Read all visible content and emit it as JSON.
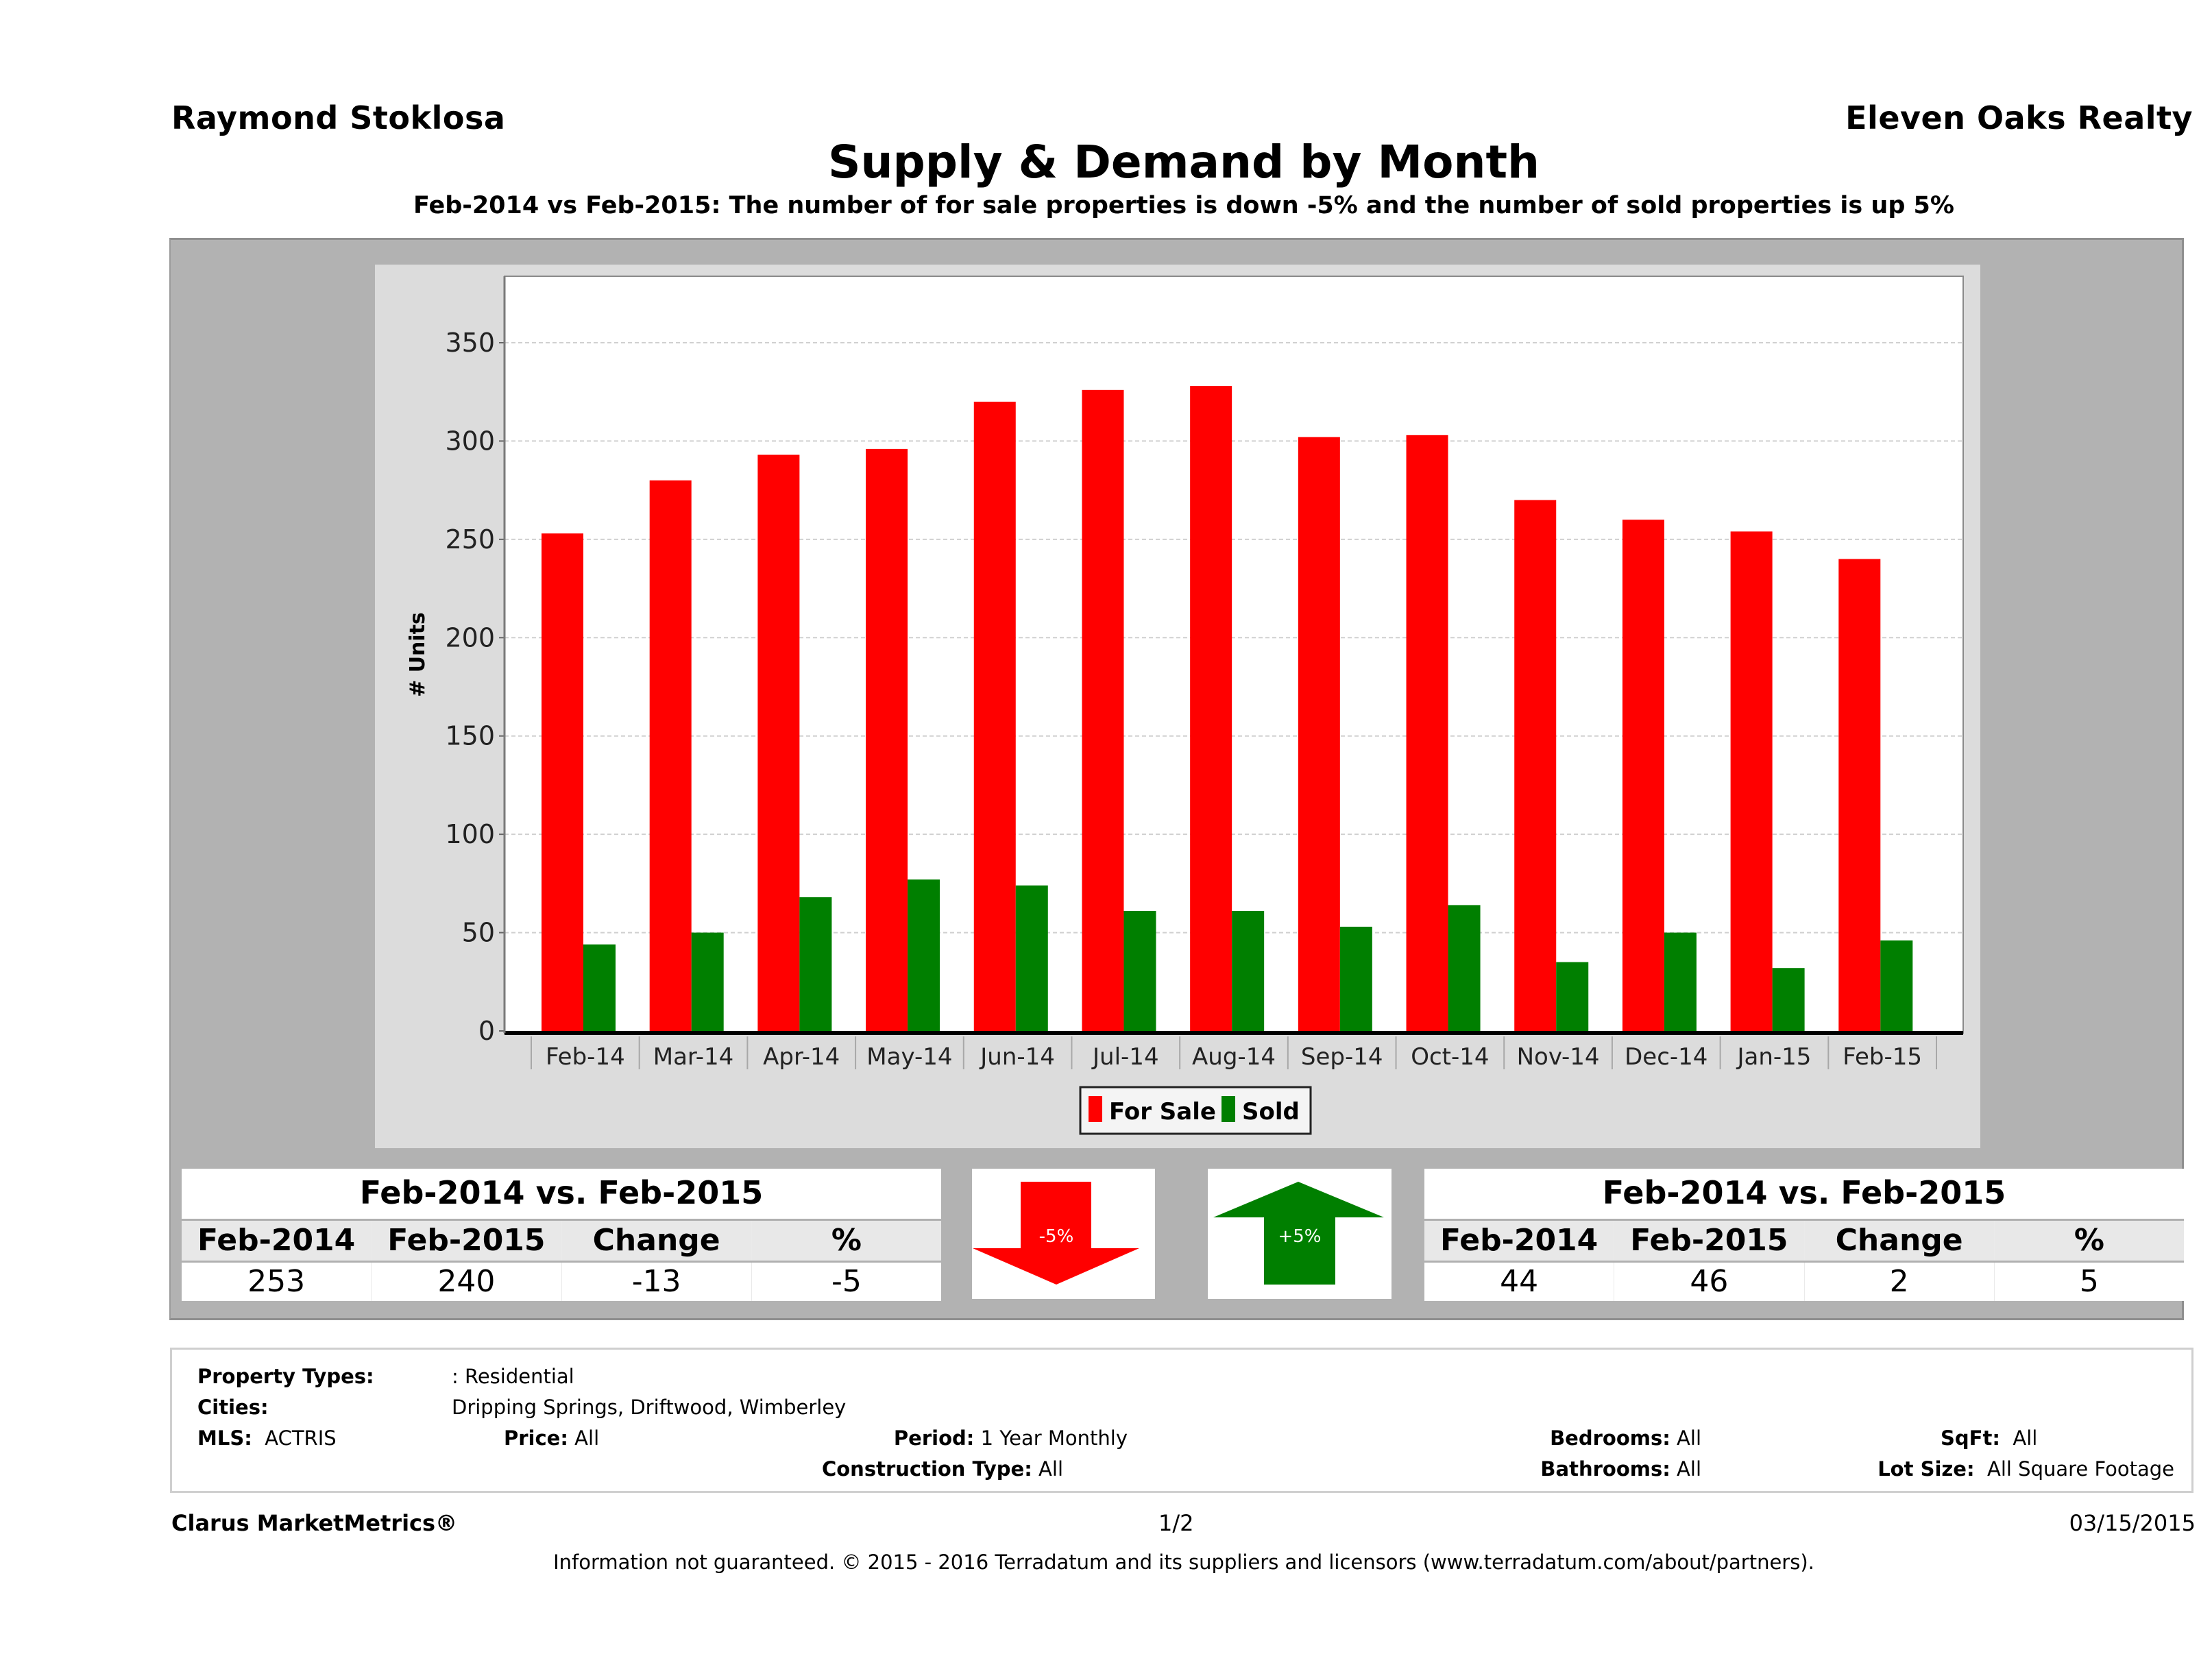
{
  "header": {
    "agent_name": "Raymond Stoklosa",
    "brokerage": "Eleven Oaks Realty",
    "title": "Supply & Demand by Month",
    "subtitle": "Feb-2014 vs Feb-2015: The number of for sale properties is down -5% and the number of sold properties is up 5%"
  },
  "colors": {
    "for_sale": "#ff0000",
    "sold": "#007f00",
    "panel_gray": "#b2b2b2",
    "chart_bg": "#dcdcdc"
  },
  "chart_data": {
    "type": "bar",
    "title": "Supply & Demand by Month",
    "xlabel": "",
    "ylabel": "# Units",
    "ylim": [
      0,
      380
    ],
    "yticks": [
      0,
      50,
      100,
      150,
      200,
      250,
      300,
      350
    ],
    "grid": true,
    "legend_position": "bottom",
    "categories": [
      "Feb-14",
      "Mar-14",
      "Apr-14",
      "May-14",
      "Jun-14",
      "Jul-14",
      "Aug-14",
      "Sep-14",
      "Oct-14",
      "Nov-14",
      "Dec-14",
      "Jan-15",
      "Feb-15"
    ],
    "series": [
      {
        "name": "For Sale",
        "color": "#ff0000",
        "values": [
          253,
          280,
          293,
          296,
          320,
          326,
          328,
          302,
          303,
          270,
          260,
          254,
          240
        ]
      },
      {
        "name": "Sold",
        "color": "#007f00",
        "values": [
          44,
          50,
          68,
          77,
          74,
          61,
          61,
          53,
          64,
          35,
          50,
          32,
          46
        ]
      }
    ]
  },
  "for_sale_table": {
    "title": "Feb-2014 vs. Feb-2015",
    "headers": [
      "Feb-2014",
      "Feb-2015",
      "Change",
      "%"
    ],
    "values": [
      "253",
      "240",
      "-13",
      "-5"
    ]
  },
  "sold_table": {
    "title": "Feb-2014 vs. Feb-2015",
    "headers": [
      "Feb-2014",
      "Feb-2015",
      "Change",
      "%"
    ],
    "values": [
      "44",
      "46",
      "2",
      "5"
    ]
  },
  "indicators": {
    "for_sale": {
      "label": "-5%",
      "direction": "down",
      "icon": "arrow-down-icon",
      "color": "#ff0000"
    },
    "sold": {
      "label": "+5%",
      "direction": "up",
      "icon": "arrow-up-icon",
      "color": "#007f00"
    }
  },
  "filters": {
    "property_types": {
      "label": "Property Types:",
      "value": ": Residential"
    },
    "cities": {
      "label": "Cities:",
      "value": "Dripping Springs, Driftwood, Wimberley"
    },
    "mls": {
      "label": "MLS:",
      "value": "ACTRIS"
    },
    "price": {
      "label": "Price:",
      "value": "All"
    },
    "period": {
      "label": "Period:",
      "value": "1 Year Monthly"
    },
    "construction_type": {
      "label": "Construction Type:",
      "value": "All"
    },
    "bedrooms": {
      "label": "Bedrooms:",
      "value": "All"
    },
    "bathrooms": {
      "label": "Bathrooms:",
      "value": "All"
    },
    "sqft": {
      "label": "SqFt:",
      "value": "All"
    },
    "lot_size": {
      "label": "Lot Size:",
      "value": "All Square Footage"
    }
  },
  "footer": {
    "brand": "Clarus MarketMetrics®",
    "page": "1/2",
    "date": "03/15/2015",
    "disclaimer": "Information not guaranteed. © 2015 - 2016 Terradatum and its suppliers and licensors (www.terradatum.com/about/partners)."
  }
}
